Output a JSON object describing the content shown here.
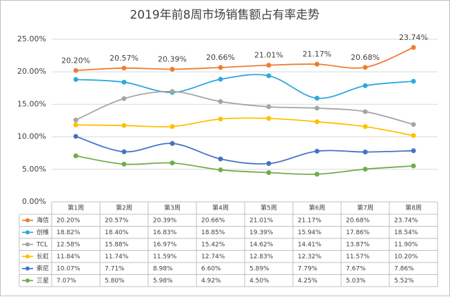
{
  "chart_data": {
    "type": "line",
    "title": "2019年前8周市场销售额占有率走势",
    "categories": [
      "第1周",
      "第2周",
      "第3周",
      "第4周",
      "第5周",
      "第6周",
      "第7周",
      "第8周"
    ],
    "ylim": [
      0,
      25
    ],
    "yticks": [
      {
        "value": 0,
        "label": "0.00%"
      },
      {
        "value": 5,
        "label": "5.00%"
      },
      {
        "value": 10,
        "label": "10.00%"
      },
      {
        "value": 15,
        "label": "15.00%"
      },
      {
        "value": 20,
        "label": "20.00%"
      },
      {
        "value": 25,
        "label": "25.00%"
      }
    ],
    "grid": true,
    "smooth": true,
    "series": [
      {
        "name": "海信",
        "color": "#ed7d31",
        "values": [
          20.2,
          20.57,
          20.39,
          20.66,
          21.01,
          21.17,
          20.68,
          23.74
        ],
        "value_labels": [
          "20.20%",
          "20.57%",
          "20.39%",
          "20.66%",
          "21.01%",
          "21.17%",
          "20.68%",
          "23.74%"
        ],
        "show_labels": true
      },
      {
        "name": "创维",
        "color": "#2fa8dc",
        "values": [
          18.82,
          18.4,
          16.83,
          18.85,
          19.39,
          15.94,
          17.86,
          18.54
        ],
        "value_labels": [
          "18.82%",
          "18.40%",
          "16.83%",
          "18.85%",
          "19.39%",
          "15.94%",
          "17.86%",
          "18.54%"
        ]
      },
      {
        "name": "TCL",
        "color": "#a5a5a5",
        "values": [
          12.58,
          15.88,
          16.97,
          15.42,
          14.62,
          14.41,
          13.87,
          11.9
        ],
        "value_labels": [
          "12.58%",
          "15.88%",
          "16.97%",
          "15.42%",
          "14.62%",
          "14.41%",
          "13.87%",
          "11.90%"
        ]
      },
      {
        "name": "长虹",
        "color": "#ffc000",
        "values": [
          11.84,
          11.74,
          11.59,
          12.74,
          12.83,
          12.32,
          11.57,
          10.2
        ],
        "value_labels": [
          "11.84%",
          "11.74%",
          "11.59%",
          "12.74%",
          "12.83%",
          "12.32%",
          "11.57%",
          "10.20%"
        ]
      },
      {
        "name": "索尼",
        "color": "#4472c4",
        "values": [
          10.07,
          7.71,
          8.98,
          6.6,
          5.89,
          7.79,
          7.67,
          7.86
        ],
        "value_labels": [
          "10.07%",
          "7.71%",
          "8.98%",
          "6.60%",
          "5.89%",
          "7.79%",
          "7.67%",
          "7.86%"
        ]
      },
      {
        "name": "三星",
        "color": "#70ad47",
        "values": [
          7.07,
          5.8,
          5.98,
          4.92,
          4.5,
          4.25,
          5.03,
          5.52
        ],
        "value_labels": [
          "7.07%",
          "5.80%",
          "5.98%",
          "4.92%",
          "4.50%",
          "4.25%",
          "5.03%",
          "5.52%"
        ]
      }
    ]
  }
}
